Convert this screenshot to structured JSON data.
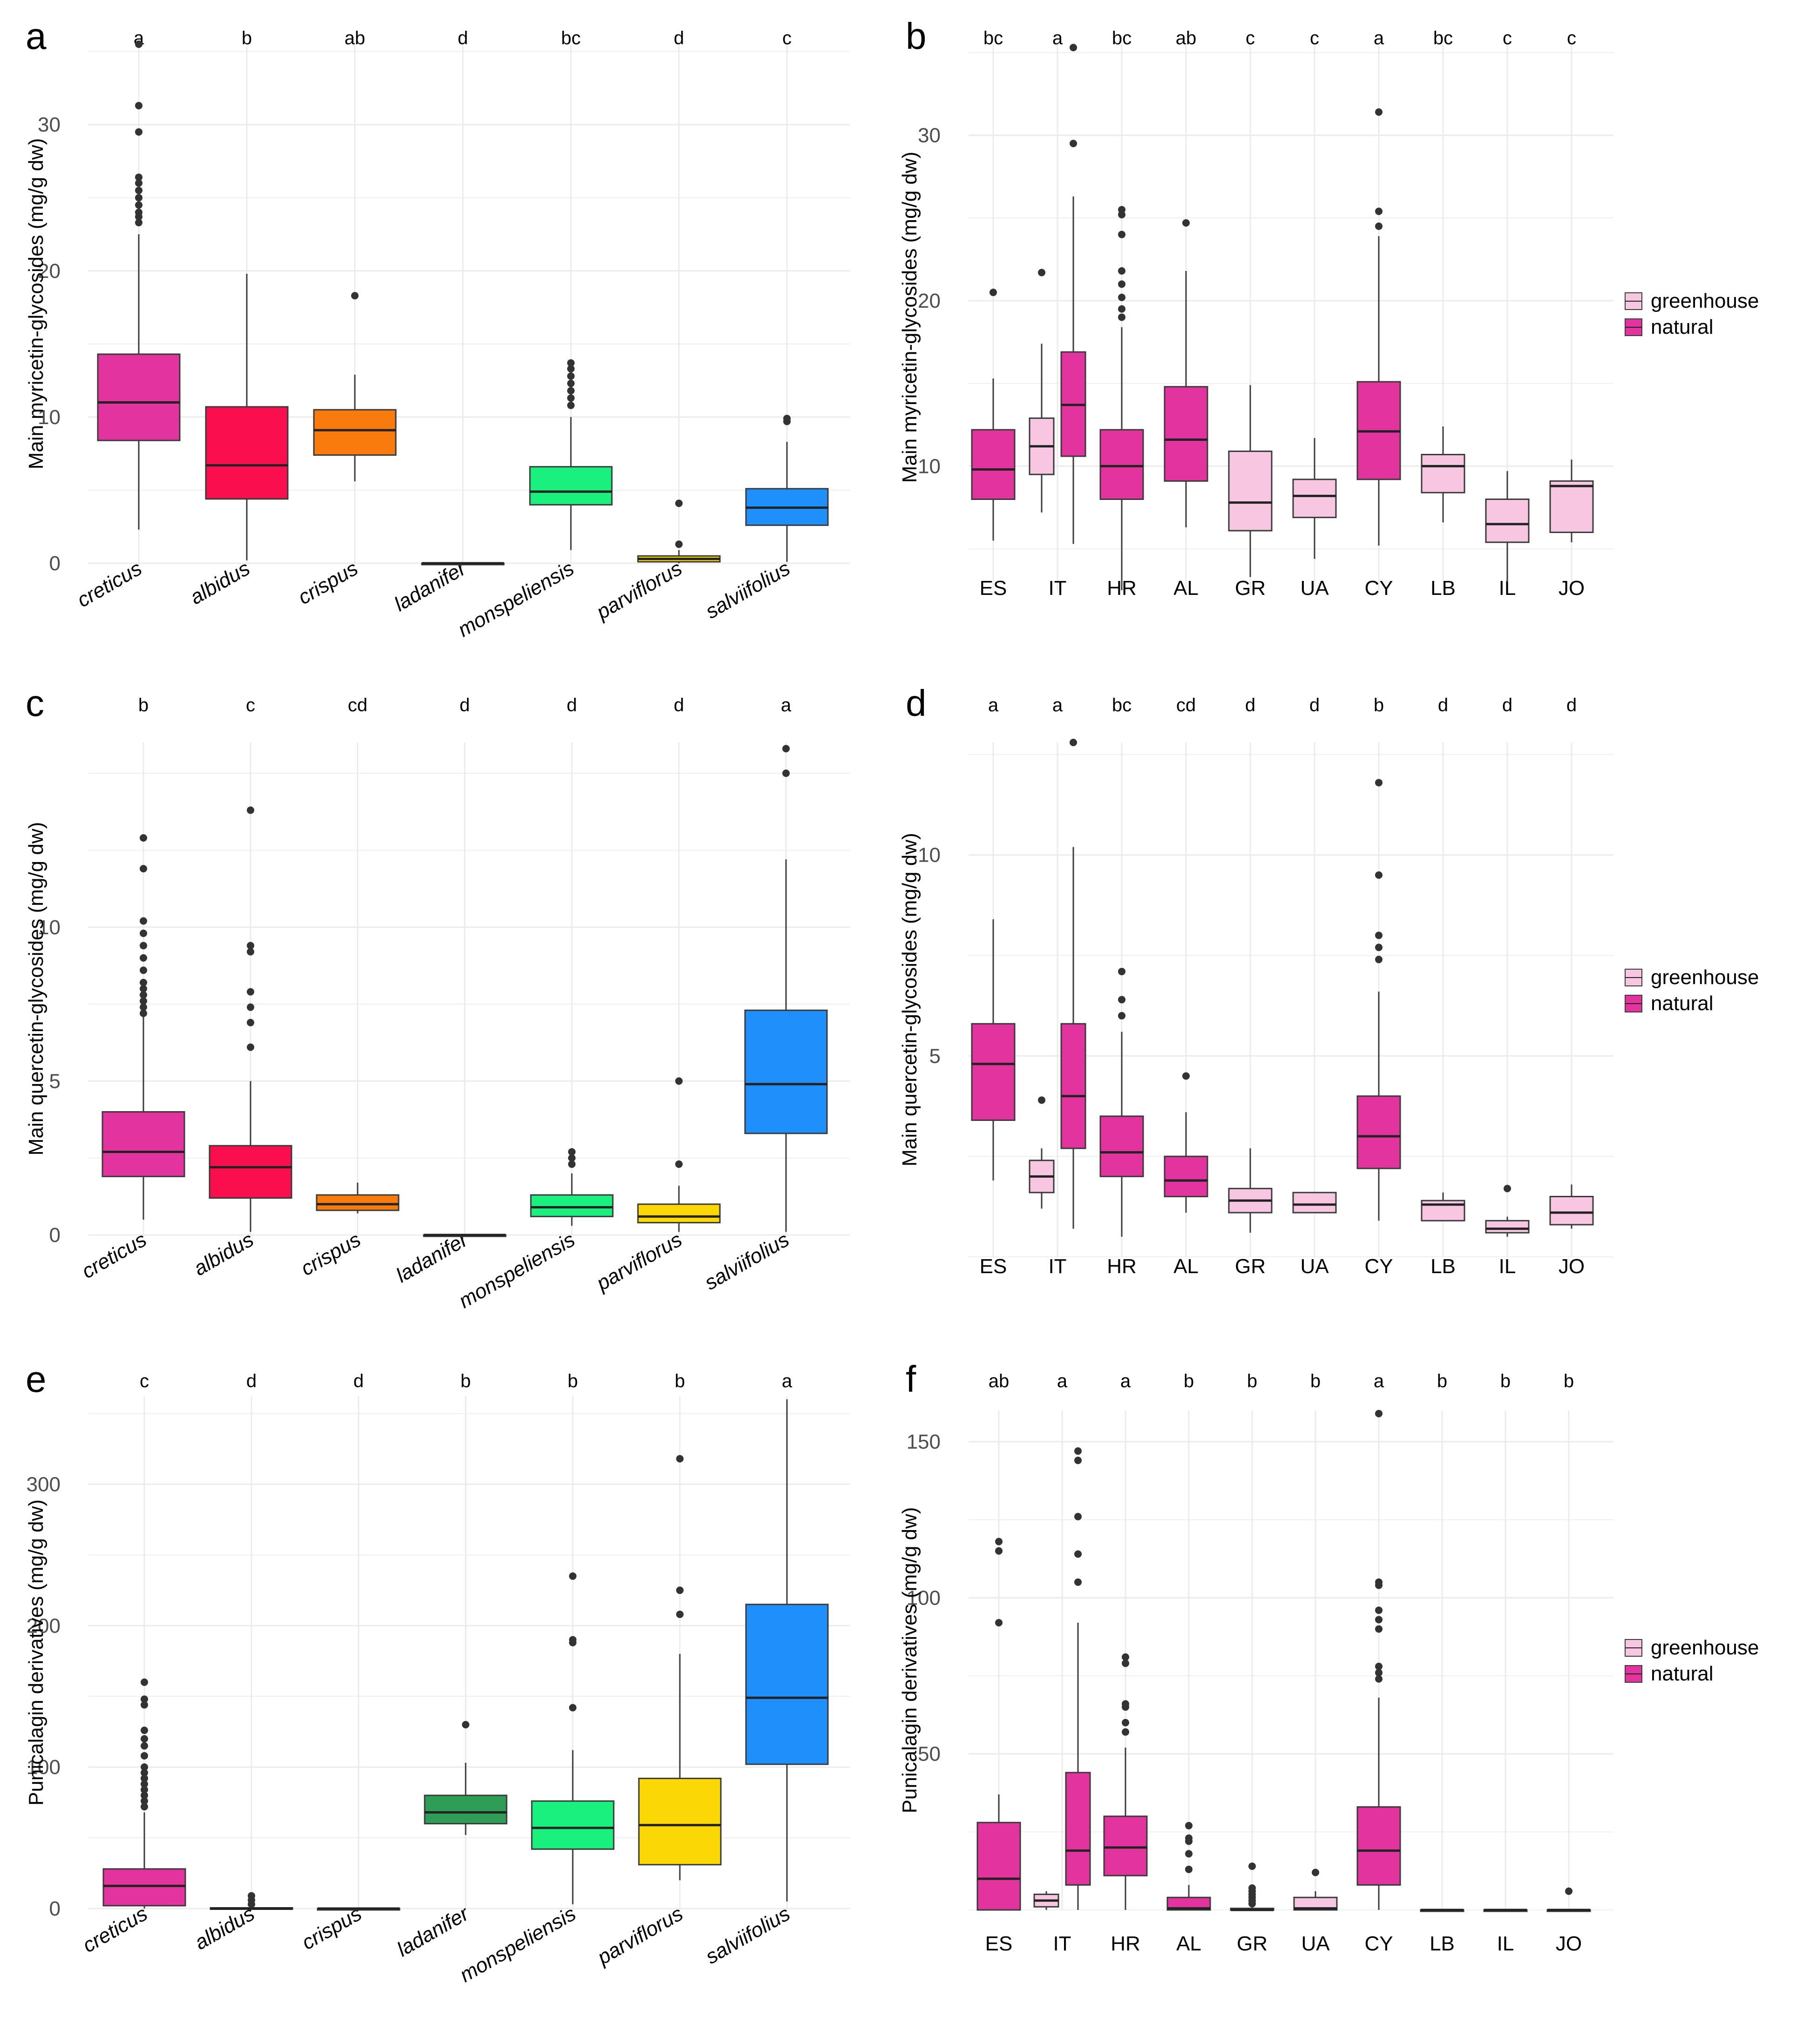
{
  "figure": {
    "description_free": true,
    "legend_entries": [
      "greenhouse",
      "natural"
    ]
  },
  "colors": {
    "greenhouse": "#f7c6e1",
    "natural": "#e3339f",
    "creticus": "#e3339f",
    "albidus": "#fa0f4e",
    "crispus": "#f97b0c",
    "ladanifer": "#2e9e57",
    "monspeliensis": "#19f07e",
    "parviflorus": "#fbd705",
    "salviifolius": "#1e8ffb",
    "grid": "#ebebeb",
    "outline": "#3a3a3a",
    "median": "#222222",
    "outlier": "#333333"
  },
  "chart_data": [
    {
      "panel": "a",
      "type": "box",
      "ylabel": "Main myricetin-glycosides (mg/g dw)",
      "ylim": [
        0,
        35.5
      ],
      "yticks": [
        0,
        10,
        20,
        30
      ],
      "italic_x": true,
      "categories": [
        "creticus",
        "albidus",
        "crispus",
        "ladanifer",
        "monspeliensis",
        "parviflorus",
        "salviifolius"
      ],
      "letters": [
        "a",
        "b",
        "ab",
        "d",
        "bc",
        "d",
        "c"
      ],
      "boxes": [
        {
          "group": "creticus",
          "min": 2.3,
          "q1": 8.4,
          "median": 11.0,
          "q3": 14.3,
          "max": 22.5,
          "outliers": [
            23.3,
            23.7,
            24.0,
            24.5,
            25.0,
            25.5,
            26.0,
            26.4,
            29.5,
            31.3,
            35.5
          ]
        },
        {
          "group": "albidus",
          "min": 0.2,
          "q1": 4.4,
          "median": 6.7,
          "q3": 10.7,
          "max": 19.8,
          "outliers": []
        },
        {
          "group": "crispus",
          "min": 5.6,
          "q1": 7.4,
          "median": 9.1,
          "q3": 10.5,
          "max": 12.9,
          "outliers": [
            18.3
          ]
        },
        {
          "group": "ladanifer",
          "min": 0,
          "q1": 0,
          "median": 0,
          "q3": 0,
          "max": 0,
          "outliers": []
        },
        {
          "group": "monspeliensis",
          "min": 0.9,
          "q1": 4.0,
          "median": 4.9,
          "q3": 6.6,
          "max": 10.0,
          "outliers": [
            10.8,
            11.3,
            11.8,
            12.3,
            12.8,
            13.3,
            13.7
          ]
        },
        {
          "group": "parviflorus",
          "min": 0,
          "q1": 0.1,
          "median": 0.3,
          "q3": 0.5,
          "max": 0.9,
          "outliers": [
            1.3,
            4.1
          ]
        },
        {
          "group": "salviifolius",
          "min": 0.1,
          "q1": 2.6,
          "median": 3.8,
          "q3": 5.1,
          "max": 8.3,
          "outliers": [
            9.7,
            9.9
          ]
        }
      ]
    },
    {
      "panel": "b",
      "type": "box",
      "ylabel": "Main myricetin-glycosides (mg/g dw)",
      "ylim": [
        2.5,
        35.5
      ],
      "yticks": [
        10,
        20,
        30
      ],
      "italic_x": false,
      "categories": [
        "ES",
        "IT",
        "HR",
        "AL",
        "GR",
        "UA",
        "CY",
        "LB",
        "IL",
        "JO"
      ],
      "letters": [
        "bc",
        "a",
        "bc",
        "ab",
        "c",
        "c",
        "a",
        "bc",
        "c",
        "c"
      ],
      "boxes": [
        {
          "group": "ES",
          "series": "natural",
          "min": 5.5,
          "q1": 8.0,
          "median": 9.8,
          "q3": 12.2,
          "max": 15.3,
          "outliers": [
            20.5
          ]
        },
        {
          "group": "IT",
          "series": "greenhouse",
          "min": 7.2,
          "q1": 9.5,
          "median": 11.2,
          "q3": 12.9,
          "max": 17.4,
          "outliers": [
            21.7
          ]
        },
        {
          "group": "IT",
          "series": "natural",
          "min": 5.3,
          "q1": 10.6,
          "median": 13.7,
          "q3": 16.9,
          "max": 26.3,
          "outliers": [
            29.5,
            35.3
          ]
        },
        {
          "group": "HR",
          "series": "natural",
          "min": 2.5,
          "q1": 8.0,
          "median": 10.0,
          "q3": 12.2,
          "max": 18.4,
          "outliers": [
            19.0,
            19.5,
            20.2,
            21.0,
            21.8,
            24.0,
            25.2,
            25.5
          ]
        },
        {
          "group": "AL",
          "series": "natural",
          "min": 6.3,
          "q1": 9.1,
          "median": 11.6,
          "q3": 14.8,
          "max": 21.8,
          "outliers": [
            24.7
          ]
        },
        {
          "group": "GR",
          "series": "greenhouse",
          "min": 3.3,
          "q1": 6.1,
          "median": 7.8,
          "q3": 10.9,
          "max": 14.9,
          "outliers": []
        },
        {
          "group": "UA",
          "series": "greenhouse",
          "min": 4.4,
          "q1": 6.9,
          "median": 8.2,
          "q3": 9.2,
          "max": 11.7,
          "outliers": []
        },
        {
          "group": "CY",
          "series": "natural",
          "min": 5.2,
          "q1": 9.2,
          "median": 12.1,
          "q3": 15.1,
          "max": 23.9,
          "outliers": [
            24.5,
            25.4,
            31.4
          ]
        },
        {
          "group": "LB",
          "series": "greenhouse",
          "min": 6.6,
          "q1": 8.4,
          "median": 10.0,
          "q3": 10.7,
          "max": 12.4,
          "outliers": []
        },
        {
          "group": "IL",
          "series": "greenhouse",
          "min": 3.0,
          "q1": 5.4,
          "median": 6.5,
          "q3": 8.0,
          "max": 9.7,
          "outliers": []
        },
        {
          "group": "JO",
          "series": "greenhouse",
          "min": 5.4,
          "q1": 6.0,
          "median": 8.8,
          "q3": 9.1,
          "max": 10.4,
          "outliers": []
        }
      ]
    },
    {
      "panel": "c",
      "type": "box",
      "ylabel": "Main quercetin-glycosides (mg/g dw)",
      "ylim": [
        0,
        16
      ],
      "yticks": [
        0,
        5,
        10
      ],
      "italic_x": true,
      "categories": [
        "creticus",
        "albidus",
        "crispus",
        "ladanifer",
        "monspeliensis",
        "parviflorus",
        "salviifolius"
      ],
      "letters": [
        "b",
        "c",
        "cd",
        "d",
        "d",
        "d",
        "a"
      ],
      "boxes": [
        {
          "group": "creticus",
          "min": 0.5,
          "q1": 1.9,
          "median": 2.7,
          "q3": 4.0,
          "max": 7.1,
          "outliers": [
            7.2,
            7.4,
            7.6,
            7.8,
            8.0,
            8.2,
            8.6,
            9.0,
            9.4,
            9.8,
            10.2,
            11.9,
            12.9
          ]
        },
        {
          "group": "albidus",
          "min": 0.1,
          "q1": 1.2,
          "median": 2.2,
          "q3": 2.9,
          "max": 5.0,
          "outliers": [
            6.1,
            6.9,
            7.4,
            7.9,
            9.2,
            9.4,
            13.8
          ]
        },
        {
          "group": "crispus",
          "min": 0.7,
          "q1": 0.8,
          "median": 1.0,
          "q3": 1.3,
          "max": 1.7,
          "outliers": []
        },
        {
          "group": "ladanifer",
          "min": 0,
          "q1": 0,
          "median": 0,
          "q3": 0,
          "max": 0,
          "outliers": []
        },
        {
          "group": "monspeliensis",
          "min": 0.3,
          "q1": 0.6,
          "median": 0.9,
          "q3": 1.3,
          "max": 2.0,
          "outliers": [
            2.3,
            2.5,
            2.7
          ]
        },
        {
          "group": "parviflorus",
          "min": 0.1,
          "q1": 0.4,
          "median": 0.6,
          "q3": 1.0,
          "max": 1.6,
          "outliers": [
            2.3,
            5.0
          ]
        },
        {
          "group": "salviifolius",
          "min": 0.1,
          "q1": 3.3,
          "median": 4.9,
          "q3": 7.3,
          "max": 12.2,
          "outliers": [
            15.0,
            15.8
          ]
        }
      ]
    },
    {
      "panel": "d",
      "type": "box",
      "ylabel": "Main quercetin-glycosides (mg/g dw)",
      "ylim": [
        0,
        12.8
      ],
      "yticks": [
        5,
        10
      ],
      "italic_x": false,
      "categories": [
        "ES",
        "IT",
        "HR",
        "AL",
        "GR",
        "UA",
        "CY",
        "LB",
        "IL",
        "JO"
      ],
      "letters": [
        "a",
        "a",
        "bc",
        "cd",
        "d",
        "d",
        "b",
        "d",
        "d",
        "d"
      ],
      "boxes": [
        {
          "group": "ES",
          "series": "natural",
          "min": 1.9,
          "q1": 3.4,
          "median": 4.8,
          "q3": 5.8,
          "max": 8.4,
          "outliers": []
        },
        {
          "group": "IT",
          "series": "greenhouse",
          "min": 1.2,
          "q1": 1.6,
          "median": 2.0,
          "q3": 2.4,
          "max": 2.7,
          "outliers": [
            3.9
          ]
        },
        {
          "group": "IT",
          "series": "natural",
          "min": 0.7,
          "q1": 2.7,
          "median": 4.0,
          "q3": 5.8,
          "max": 10.2,
          "outliers": [
            12.8
          ]
        },
        {
          "group": "HR",
          "series": "natural",
          "min": 0.5,
          "q1": 2.0,
          "median": 2.6,
          "q3": 3.5,
          "max": 5.6,
          "outliers": [
            6.0,
            6.4,
            7.1
          ]
        },
        {
          "group": "AL",
          "series": "natural",
          "min": 1.1,
          "q1": 1.5,
          "median": 1.9,
          "q3": 2.5,
          "max": 3.6,
          "outliers": [
            4.5
          ]
        },
        {
          "group": "GR",
          "series": "greenhouse",
          "min": 0.6,
          "q1": 1.1,
          "median": 1.4,
          "q3": 1.7,
          "max": 2.7,
          "outliers": []
        },
        {
          "group": "UA",
          "series": "greenhouse",
          "min": 1.1,
          "q1": 1.1,
          "median": 1.3,
          "q3": 1.6,
          "max": 1.6,
          "outliers": []
        },
        {
          "group": "CY",
          "series": "natural",
          "min": 0.9,
          "q1": 2.2,
          "median": 3.0,
          "q3": 4.0,
          "max": 6.6,
          "outliers": [
            7.4,
            7.7,
            8.0,
            9.5,
            11.8
          ]
        },
        {
          "group": "LB",
          "series": "greenhouse",
          "min": 0.9,
          "q1": 0.9,
          "median": 1.3,
          "q3": 1.4,
          "max": 1.6,
          "outliers": []
        },
        {
          "group": "IL",
          "series": "greenhouse",
          "min": 0.5,
          "q1": 0.6,
          "median": 0.7,
          "q3": 0.9,
          "max": 1.0,
          "outliers": [
            1.7
          ]
        },
        {
          "group": "JO",
          "series": "greenhouse",
          "min": 0.7,
          "q1": 0.8,
          "median": 1.1,
          "q3": 1.5,
          "max": 1.8,
          "outliers": []
        }
      ]
    },
    {
      "panel": "e",
      "type": "box",
      "ylabel": "Punicalagin derivatives (mg/g dw)",
      "ylim": [
        0,
        362
      ],
      "yticks": [
        0,
        100,
        200,
        300
      ],
      "italic_x": true,
      "categories": [
        "creticus",
        "albidus",
        "crispus",
        "ladanifer",
        "monspeliensis",
        "parviflorus",
        "salviifolius"
      ],
      "letters": [
        "c",
        "d",
        "d",
        "b",
        "b",
        "b",
        "a"
      ],
      "boxes": [
        {
          "group": "creticus",
          "min": 0,
          "q1": 2,
          "median": 16,
          "q3": 28,
          "max": 68,
          "outliers": [
            72,
            76,
            80,
            84,
            88,
            92,
            96,
            100,
            108,
            115,
            120,
            126,
            144,
            148,
            160
          ]
        },
        {
          "group": "albidus",
          "min": 0,
          "q1": 0,
          "median": 0,
          "q3": 0.5,
          "max": 1,
          "outliers": [
            3,
            6,
            9
          ]
        },
        {
          "group": "crispus",
          "min": 0,
          "q1": 0,
          "median": 0,
          "q3": 0,
          "max": 0,
          "outliers": []
        },
        {
          "group": "ladanifer",
          "min": 52,
          "q1": 60,
          "median": 68,
          "q3": 80,
          "max": 103,
          "outliers": [
            130
          ]
        },
        {
          "group": "monspeliensis",
          "min": 3,
          "q1": 42,
          "median": 57,
          "q3": 76,
          "max": 112,
          "outliers": [
            142,
            188,
            190,
            235
          ]
        },
        {
          "group": "parviflorus",
          "min": 20,
          "q1": 31,
          "median": 59,
          "q3": 92,
          "max": 180,
          "outliers": [
            208,
            225,
            318
          ]
        },
        {
          "group": "salviifolius",
          "min": 5,
          "q1": 102,
          "median": 149,
          "q3": 215,
          "max": 360,
          "outliers": []
        }
      ]
    },
    {
      "panel": "f",
      "type": "box",
      "ylabel": "Punicalagin derivatives (mg/g dw)",
      "ylim": [
        0,
        160
      ],
      "yticks": [
        50,
        100,
        150
      ],
      "italic_x": false,
      "categories": [
        "ES",
        "IT",
        "HR",
        "AL",
        "GR",
        "UA",
        "CY",
        "LB",
        "IL",
        "JO"
      ],
      "letters": [
        "ab",
        "a",
        "a",
        "b",
        "b",
        "b",
        "a",
        "b",
        "b",
        "b"
      ],
      "boxes": [
        {
          "group": "ES",
          "series": "natural",
          "min": 0,
          "q1": 0,
          "median": 10,
          "q3": 28,
          "max": 37,
          "outliers": [
            92,
            115,
            118
          ]
        },
        {
          "group": "IT",
          "series": "greenhouse",
          "min": 0,
          "q1": 1,
          "median": 3,
          "q3": 5,
          "max": 6,
          "outliers": []
        },
        {
          "group": "IT",
          "series": "natural",
          "min": 0,
          "q1": 8,
          "median": 19,
          "q3": 44,
          "max": 92,
          "outliers": [
            105,
            114,
            126,
            144,
            147
          ]
        },
        {
          "group": "HR",
          "series": "natural",
          "min": 0,
          "q1": 11,
          "median": 20,
          "q3": 30,
          "max": 52,
          "outliers": [
            57,
            60,
            65,
            66,
            79,
            81
          ]
        },
        {
          "group": "AL",
          "series": "natural",
          "min": 0,
          "q1": 0,
          "median": 0.5,
          "q3": 4,
          "max": 8,
          "outliers": [
            13,
            18,
            22,
            23,
            27
          ]
        },
        {
          "group": "GR",
          "series": "greenhouse",
          "min": 0,
          "q1": 0,
          "median": 0,
          "q3": 0.5,
          "max": 1,
          "outliers": [
            2,
            3,
            4,
            5,
            6,
            7,
            14
          ]
        },
        {
          "group": "UA",
          "series": "greenhouse",
          "min": 0,
          "q1": 0,
          "median": 0.5,
          "q3": 4,
          "max": 6,
          "outliers": [
            12
          ]
        },
        {
          "group": "CY",
          "series": "natural",
          "min": 0,
          "q1": 8,
          "median": 19,
          "q3": 33,
          "max": 68,
          "outliers": [
            74,
            76,
            78,
            90,
            93,
            96,
            104,
            105,
            159
          ]
        },
        {
          "group": "LB",
          "series": "greenhouse",
          "min": 0,
          "q1": 0,
          "median": 0,
          "q3": 0,
          "max": 0,
          "outliers": []
        },
        {
          "group": "IL",
          "series": "greenhouse",
          "min": 0,
          "q1": 0,
          "median": 0,
          "q3": 0,
          "max": 0,
          "outliers": []
        },
        {
          "group": "JO",
          "series": "greenhouse",
          "min": 0,
          "q1": 0,
          "median": 0,
          "q3": 0,
          "max": 0,
          "outliers": [
            6
          ]
        }
      ]
    }
  ]
}
